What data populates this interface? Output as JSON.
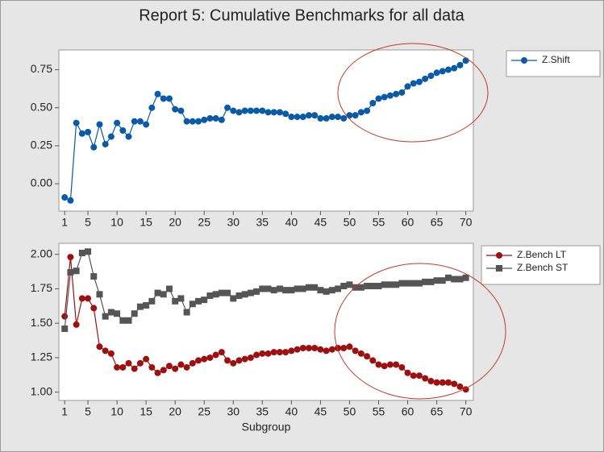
{
  "title": "Report 5: Cumulative Benchmarks for all data",
  "chart_data": [
    {
      "type": "line",
      "x": [
        1,
        2,
        3,
        4,
        5,
        6,
        7,
        8,
        9,
        10,
        11,
        12,
        13,
        14,
        15,
        16,
        17,
        18,
        19,
        20,
        21,
        22,
        23,
        24,
        25,
        26,
        27,
        28,
        29,
        30,
        31,
        32,
        33,
        34,
        35,
        36,
        37,
        38,
        39,
        40,
        41,
        42,
        43,
        44,
        45,
        46,
        47,
        48,
        49,
        50,
        51,
        52,
        53,
        54,
        55,
        56,
        57,
        58,
        59,
        60,
        61,
        62,
        63,
        64,
        65,
        66,
        67,
        68,
        69,
        70
      ],
      "series": [
        {
          "name": "Z.Shift",
          "color": "#0b5aa6",
          "marker": "circle",
          "values": [
            -0.09,
            -0.11,
            0.4,
            0.33,
            0.34,
            0.24,
            0.39,
            0.26,
            0.31,
            0.4,
            0.35,
            0.31,
            0.41,
            0.41,
            0.39,
            0.5,
            0.59,
            0.56,
            0.56,
            0.49,
            0.48,
            0.41,
            0.41,
            0.41,
            0.42,
            0.43,
            0.43,
            0.42,
            0.5,
            0.48,
            0.47,
            0.48,
            0.48,
            0.48,
            0.48,
            0.47,
            0.47,
            0.47,
            0.46,
            0.44,
            0.44,
            0.44,
            0.45,
            0.45,
            0.43,
            0.43,
            0.44,
            0.44,
            0.43,
            0.45,
            0.45,
            0.47,
            0.48,
            0.53,
            0.56,
            0.57,
            0.58,
            0.59,
            0.6,
            0.64,
            0.66,
            0.67,
            0.69,
            0.71,
            0.73,
            0.74,
            0.75,
            0.76,
            0.78,
            0.81
          ]
        }
      ],
      "xlim": [
        0,
        71.3
      ],
      "xticks": [
        1,
        5,
        10,
        15,
        20,
        25,
        30,
        35,
        40,
        45,
        50,
        55,
        60,
        65,
        70
      ],
      "ylim": [
        -0.18,
        0.88
      ],
      "yticks": [
        {
          "value": 0,
          "label": "0.00"
        },
        0.25,
        {
          "value": 0.5,
          "label": "0.50"
        },
        0.75
      ],
      "legend": "right"
    },
    {
      "type": "line",
      "xlabel": "Subgroup",
      "x": [
        1,
        2,
        3,
        4,
        5,
        6,
        7,
        8,
        9,
        10,
        11,
        12,
        13,
        14,
        15,
        16,
        17,
        18,
        19,
        20,
        21,
        22,
        23,
        24,
        25,
        26,
        27,
        28,
        29,
        30,
        31,
        32,
        33,
        34,
        35,
        36,
        37,
        38,
        39,
        40,
        41,
        42,
        43,
        44,
        45,
        46,
        47,
        48,
        49,
        50,
        51,
        52,
        53,
        54,
        55,
        56,
        57,
        58,
        59,
        60,
        61,
        62,
        63,
        64,
        65,
        66,
        67,
        68,
        69,
        70
      ],
      "series": [
        {
          "name": "Z.Bench LT",
          "color": "#9e1010",
          "marker": "circle",
          "values": [
            1.55,
            1.98,
            1.49,
            1.68,
            1.68,
            1.61,
            1.33,
            1.3,
            1.28,
            1.18,
            1.18,
            1.21,
            1.17,
            1.21,
            1.24,
            1.18,
            1.14,
            1.16,
            1.19,
            1.17,
            1.2,
            1.18,
            1.21,
            1.23,
            1.24,
            1.25,
            1.27,
            1.29,
            1.23,
            1.21,
            1.23,
            1.24,
            1.25,
            1.27,
            1.28,
            1.28,
            1.29,
            1.29,
            1.29,
            1.3,
            1.31,
            1.32,
            1.32,
            1.32,
            1.31,
            1.3,
            1.31,
            1.32,
            1.32,
            1.33,
            1.3,
            1.28,
            1.26,
            1.23,
            1.2,
            1.19,
            1.2,
            1.2,
            1.18,
            1.14,
            1.12,
            1.12,
            1.1,
            1.08,
            1.07,
            1.07,
            1.07,
            1.06,
            1.04,
            1.02
          ]
        },
        {
          "name": "Z.Bench ST",
          "color": "#555555",
          "marker": "square",
          "values": [
            1.46,
            1.87,
            1.88,
            2.01,
            2.02,
            1.84,
            1.71,
            1.55,
            1.58,
            1.57,
            1.52,
            1.52,
            1.57,
            1.62,
            1.63,
            1.66,
            1.72,
            1.71,
            1.75,
            1.66,
            1.68,
            1.58,
            1.64,
            1.66,
            1.67,
            1.7,
            1.71,
            1.72,
            1.72,
            1.68,
            1.7,
            1.71,
            1.72,
            1.73,
            1.75,
            1.75,
            1.74,
            1.75,
            1.74,
            1.74,
            1.75,
            1.75,
            1.76,
            1.76,
            1.74,
            1.73,
            1.74,
            1.75,
            1.77,
            1.78,
            1.76,
            1.76,
            1.77,
            1.77,
            1.77,
            1.78,
            1.78,
            1.78,
            1.79,
            1.79,
            1.79,
            1.79,
            1.8,
            1.8,
            1.81,
            1.81,
            1.83,
            1.82,
            1.82,
            1.83
          ]
        }
      ],
      "xlim": [
        0,
        71.3
      ],
      "xticks": [
        1,
        5,
        10,
        15,
        20,
        25,
        30,
        35,
        40,
        45,
        50,
        55,
        60,
        65,
        70
      ],
      "ylim": [
        0.94,
        2.08
      ],
      "yticks": [
        {
          "value": 1,
          "label": "1.00"
        },
        1.25,
        {
          "value": 1.5,
          "label": "1.50"
        },
        1.75,
        {
          "value": 2,
          "label": "2.00"
        }
      ],
      "legend": "right"
    }
  ]
}
